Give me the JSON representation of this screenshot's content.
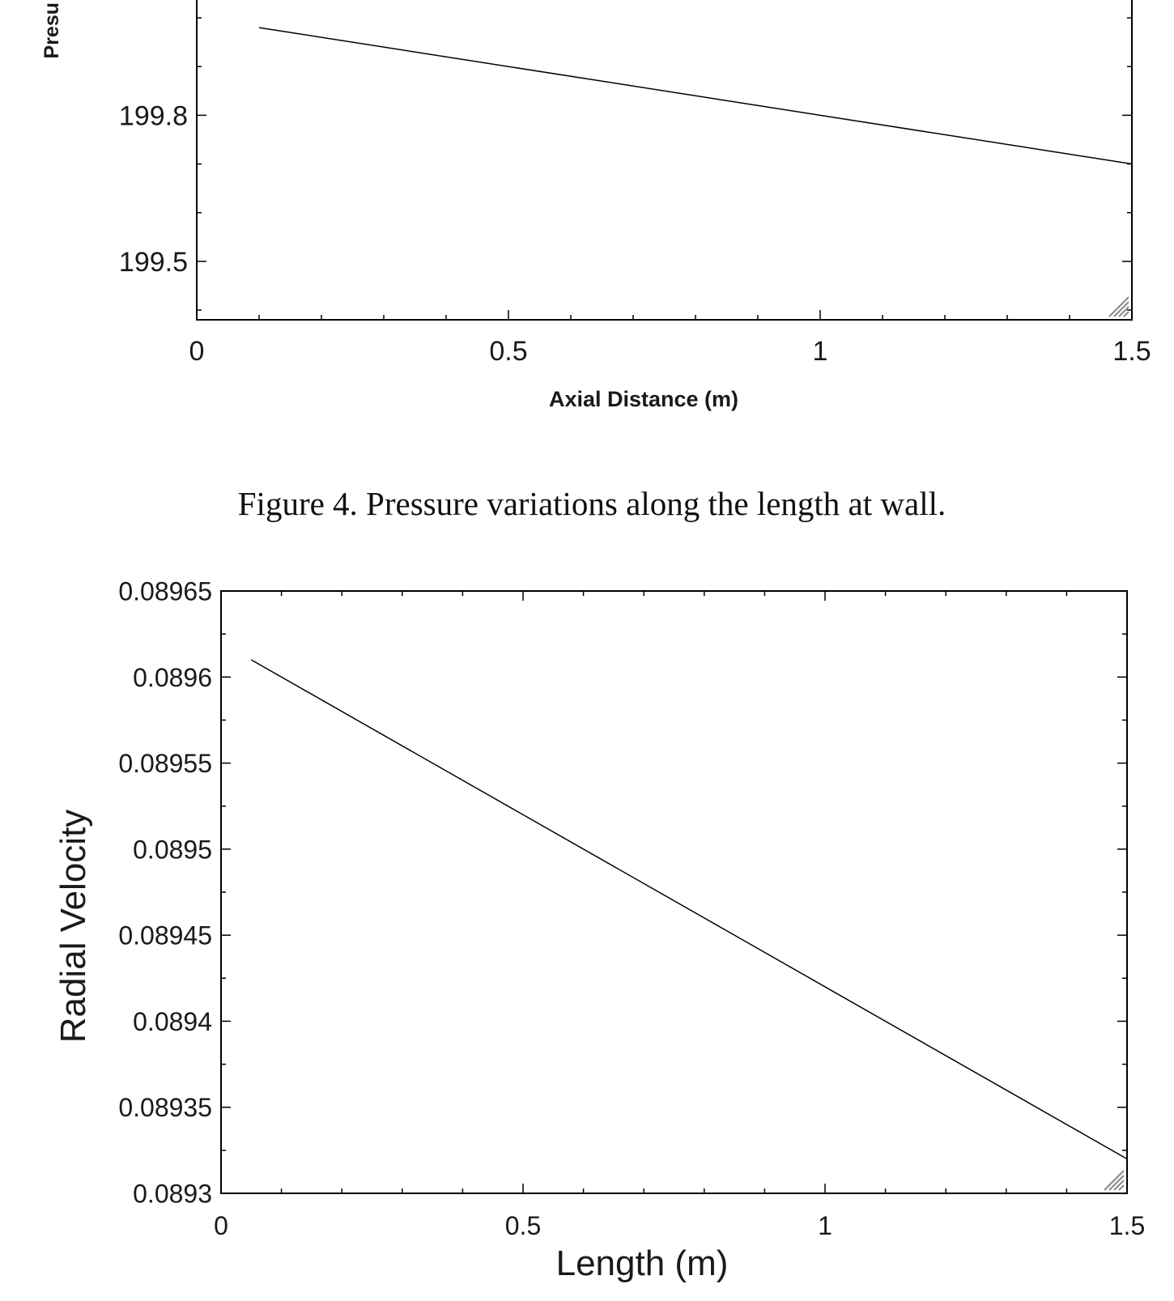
{
  "caption": "Figure 4. Pressure variations along the length at wall.",
  "chart_data": [
    {
      "type": "line",
      "title": "",
      "xlabel": "Axial Distance (m)",
      "ylabel": "Presu",
      "xlim": [
        0,
        1.5
      ],
      "ylim": [
        199.38,
        200.05
      ],
      "x_ticks": [
        0,
        0.5,
        1,
        1.5
      ],
      "x_tick_labels": [
        "0",
        "0.5",
        "1",
        "1.5"
      ],
      "y_ticks": [
        199.5,
        199.8
      ],
      "y_tick_labels": [
        "199.5",
        "199.8"
      ],
      "grid": false,
      "legend": "none",
      "series": [
        {
          "x": [
            0.1,
            1.5
          ],
          "y": [
            199.98,
            199.7
          ]
        }
      ]
    },
    {
      "type": "line",
      "title": "",
      "xlabel": "Length (m)",
      "ylabel": "Radial Velocity",
      "xlim": [
        0,
        1.5
      ],
      "ylim": [
        0.0893,
        0.08965
      ],
      "x_ticks": [
        0,
        0.5,
        1,
        1.5
      ],
      "x_tick_labels": [
        "0",
        "0.5",
        "1",
        "1.5"
      ],
      "y_ticks": [
        0.0893,
        0.08935,
        0.0894,
        0.08945,
        0.0895,
        0.08955,
        0.0896,
        0.08965
      ],
      "y_tick_labels": [
        "0.0893",
        "0.08935",
        "0.0894",
        "0.08945",
        "0.0895",
        "0.08955",
        "0.0896",
        "0.08965"
      ],
      "grid": false,
      "legend": "none",
      "series": [
        {
          "x": [
            0.05,
            1.5
          ],
          "y": [
            0.08961,
            0.08932
          ]
        }
      ]
    }
  ]
}
